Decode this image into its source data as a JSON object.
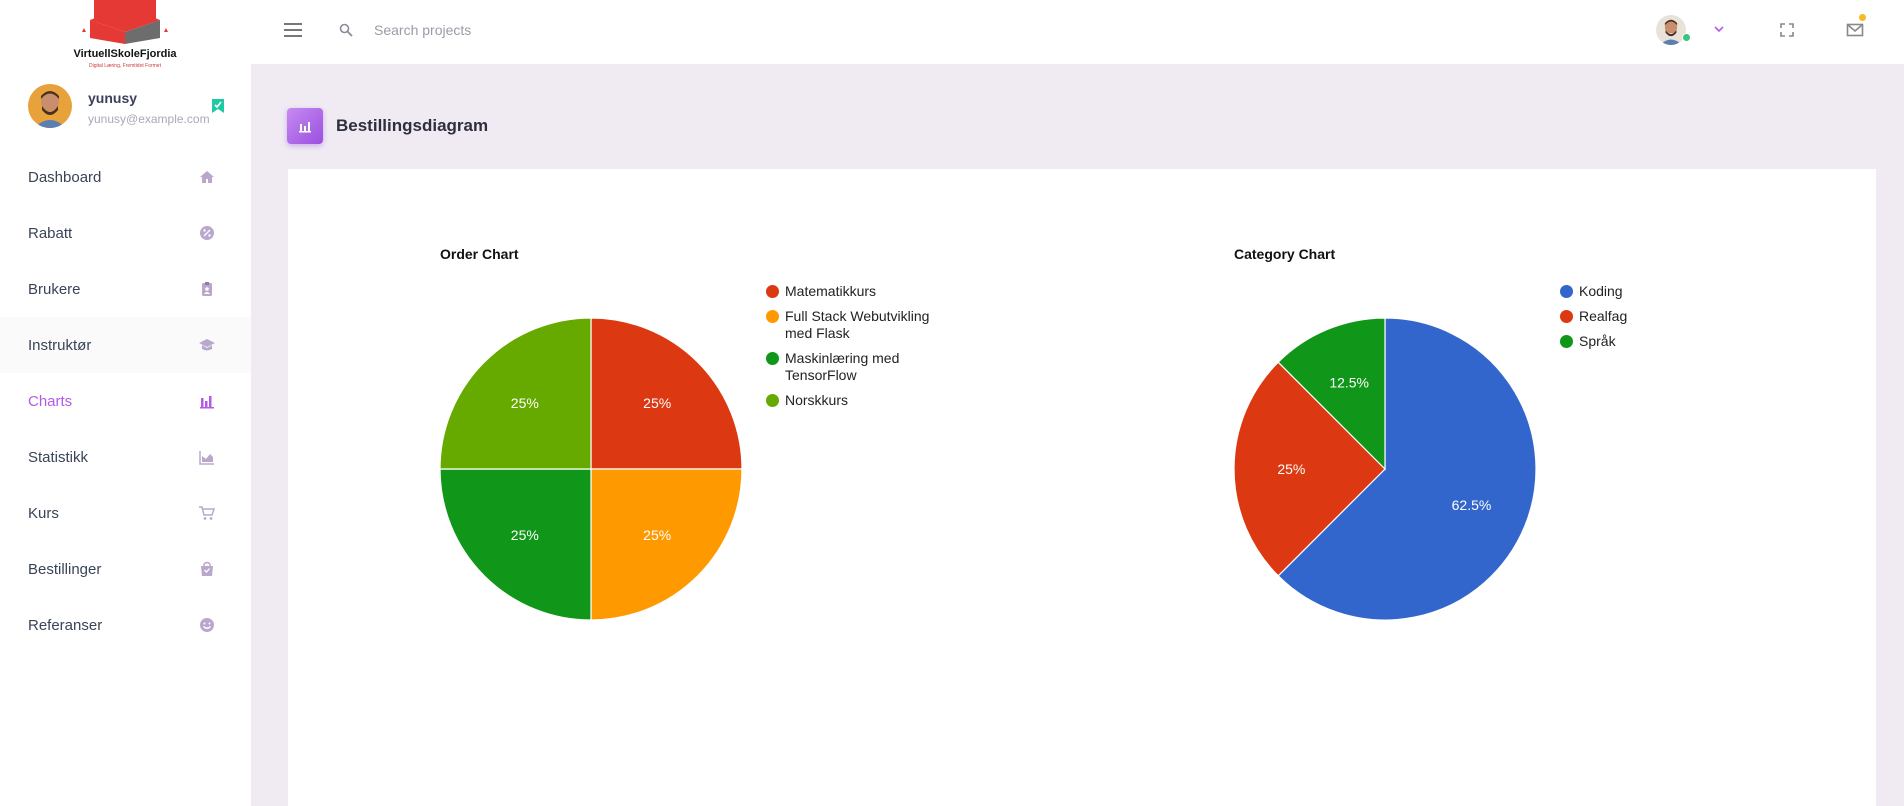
{
  "brand": {
    "name": "VirtuellSkoleFjordia",
    "tagline": "Digital Læring, Fremtidet Formet"
  },
  "user": {
    "name": "yunusy",
    "email": "yunusy@example.com"
  },
  "sidebar": {
    "items": [
      {
        "label": "Dashboard",
        "icon": "home-icon"
      },
      {
        "label": "Rabatt",
        "icon": "discount-icon"
      },
      {
        "label": "Brukere",
        "icon": "users-icon"
      },
      {
        "label": "Instruktør",
        "icon": "graduation-cap-icon"
      },
      {
        "label": "Charts",
        "icon": "bar-chart-icon"
      },
      {
        "label": "Statistikk",
        "icon": "area-chart-icon"
      },
      {
        "label": "Kurs",
        "icon": "cart-icon"
      },
      {
        "label": "Bestillinger",
        "icon": "shopping-bag-icon"
      },
      {
        "label": "Referanser",
        "icon": "smile-icon"
      }
    ],
    "active": "Charts"
  },
  "topbar": {
    "search_placeholder": "Search projects"
  },
  "page": {
    "title": "Bestillingsdiagram"
  },
  "colors": {
    "accent": "#b35be6",
    "red": "#dc3912",
    "orange": "#ff9900",
    "green": "#109618",
    "lime": "#66aa00",
    "blue": "#3366cc"
  },
  "chart_data": [
    {
      "type": "pie",
      "title": "Order Chart",
      "legend_position": "right",
      "slices": [
        {
          "label": "Matematikkurs",
          "value": 25,
          "display": "25%",
          "color": "#dc3912"
        },
        {
          "label": "Full Stack Webutvikling med Flask",
          "value": 25,
          "display": "25%",
          "color": "#ff9900"
        },
        {
          "label": "Maskinlæring med TensorFlow",
          "value": 25,
          "display": "25%",
          "color": "#109618"
        },
        {
          "label": "Norskkurs",
          "value": 25,
          "display": "25%",
          "color": "#66aa00"
        }
      ]
    },
    {
      "type": "pie",
      "title": "Category Chart",
      "legend_position": "right",
      "slices": [
        {
          "label": "Koding",
          "value": 62.5,
          "display": "62.5%",
          "color": "#3366cc"
        },
        {
          "label": "Realfag",
          "value": 25,
          "display": "25%",
          "color": "#dc3912"
        },
        {
          "label": "Språk",
          "value": 12.5,
          "display": "12.5%",
          "color": "#109618"
        }
      ]
    }
  ]
}
